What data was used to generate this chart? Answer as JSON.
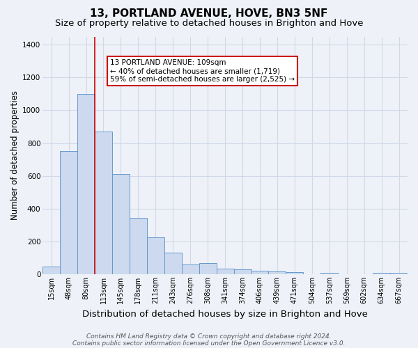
{
  "title": "13, PORTLAND AVENUE, HOVE, BN3 5NF",
  "subtitle": "Size of property relative to detached houses in Brighton and Hove",
  "xlabel": "Distribution of detached houses by size in Brighton and Hove",
  "ylabel": "Number of detached properties",
  "categories": [
    "15sqm",
    "48sqm",
    "80sqm",
    "113sqm",
    "145sqm",
    "178sqm",
    "211sqm",
    "243sqm",
    "276sqm",
    "308sqm",
    "341sqm",
    "374sqm",
    "406sqm",
    "439sqm",
    "471sqm",
    "504sqm",
    "537sqm",
    "569sqm",
    "602sqm",
    "634sqm",
    "667sqm"
  ],
  "values": [
    48,
    750,
    1100,
    870,
    610,
    345,
    225,
    130,
    60,
    68,
    33,
    30,
    22,
    15,
    11,
    0,
    10,
    0,
    0,
    10,
    10
  ],
  "bar_color": "#ccd9ee",
  "bar_edge_color": "#6699cc",
  "grid_color": "#d0d8e8",
  "background_color": "#eef2f8",
  "property_line_color": "#cc0000",
  "annotation_text": "13 PORTLAND AVENUE: 109sqm\n← 40% of detached houses are smaller (1,719)\n59% of semi-detached houses are larger (2,525) →",
  "annotation_box_color": "#ffffff",
  "annotation_border_color": "#cc0000",
  "footer_line1": "Contains HM Land Registry data © Crown copyright and database right 2024.",
  "footer_line2": "Contains public sector information licensed under the Open Government Licence v3.0.",
  "ylim": [
    0,
    1450
  ],
  "yticks": [
    0,
    200,
    400,
    600,
    800,
    1000,
    1200,
    1400
  ],
  "title_fontsize": 11,
  "subtitle_fontsize": 9.5,
  "xlabel_fontsize": 9.5,
  "ylabel_fontsize": 8.5,
  "tick_fontsize": 7,
  "annot_fontsize": 7.5,
  "footer_fontsize": 6.5
}
